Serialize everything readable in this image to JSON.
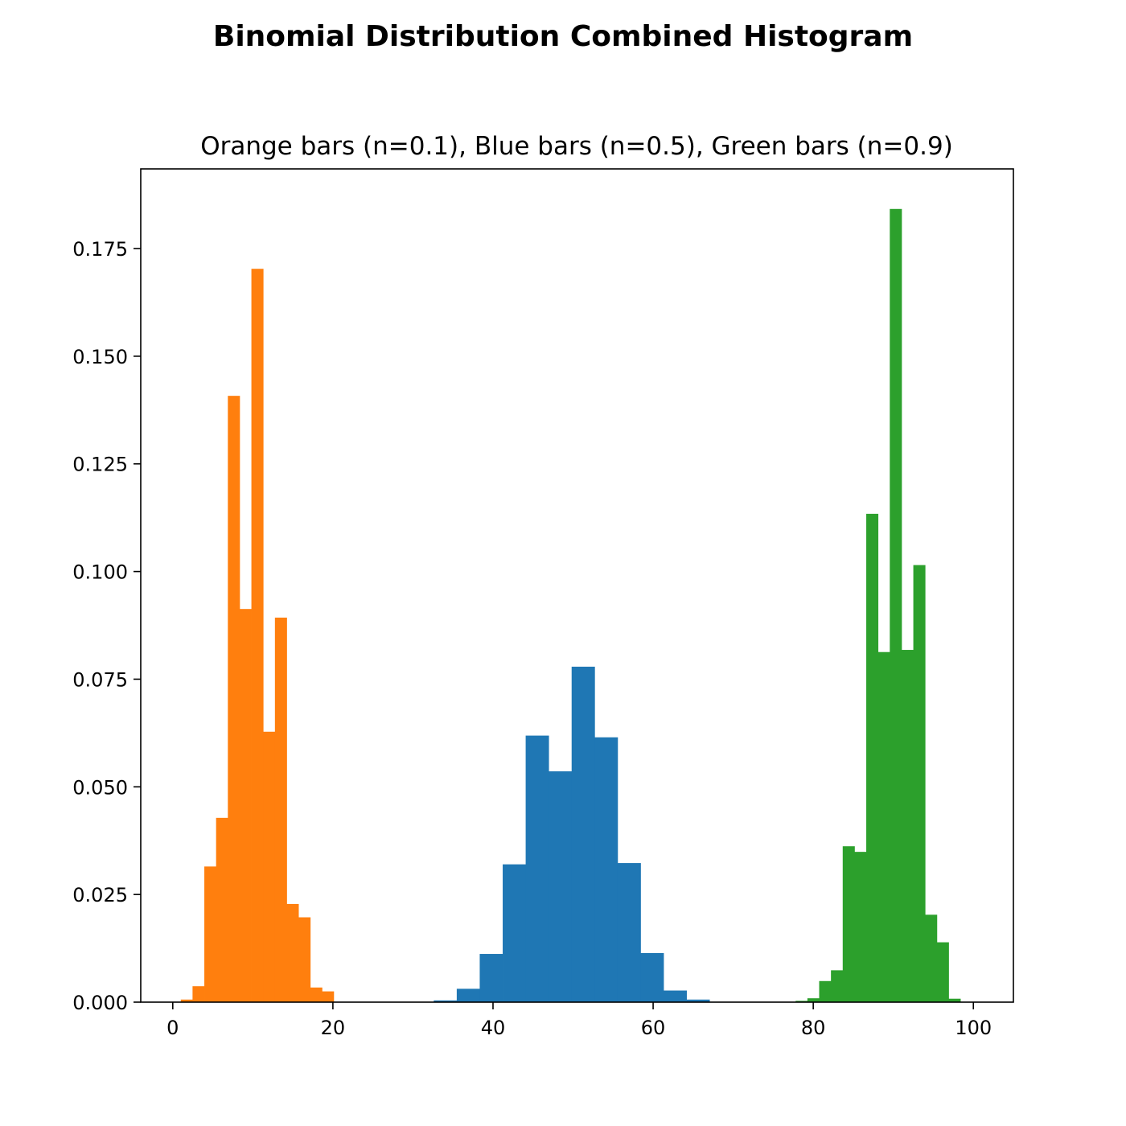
{
  "figure": {
    "suptitle": "Binomial Distribution Combined Histogram",
    "title": "Orange bars (n=0.1), Blue bars (n=0.5), Green bars (n=0.9)"
  },
  "chart_data": {
    "type": "bar",
    "title": "Orange bars (n=0.1), Blue bars (n=0.5), Green bars (n=0.9)",
    "xlabel": "",
    "ylabel": "",
    "xlim": [
      -4,
      105
    ],
    "ylim": [
      0,
      0.1935
    ],
    "x_ticks": [
      0,
      20,
      40,
      60,
      80,
      100
    ],
    "x_tick_labels": [
      "0",
      "20",
      "40",
      "60",
      "80",
      "100"
    ],
    "y_ticks": [
      0,
      0.025,
      0.05,
      0.075,
      0.1,
      0.125,
      0.15,
      0.175
    ],
    "y_tick_labels": [
      "0.000",
      "0.025",
      "0.050",
      "0.075",
      "0.100",
      "0.125",
      "0.150",
      "0.175"
    ],
    "grid": false,
    "legend": "none",
    "series": [
      {
        "color": "#ff7f0e",
        "bin_edges": [
          1.0,
          2.47,
          3.94,
          5.41,
          6.88,
          8.35,
          9.82,
          11.29,
          12.76,
          14.23,
          15.7,
          17.17,
          18.64,
          20.1
        ],
        "values": [
          0.0006,
          0.0037,
          0.0315,
          0.0428,
          0.1408,
          0.0913,
          0.1703,
          0.0628,
          0.0893,
          0.0228,
          0.0197,
          0.0034,
          0.0025
        ]
      },
      {
        "color": "#1f77b4",
        "bin_edges": [
          32.6,
          35.47,
          38.34,
          41.21,
          44.08,
          46.95,
          49.82,
          52.69,
          55.56,
          58.43,
          61.3,
          64.17,
          67.04
        ],
        "values": [
          0.0004,
          0.0031,
          0.0112,
          0.032,
          0.0619,
          0.0536,
          0.0779,
          0.0615,
          0.0323,
          0.0114,
          0.0027,
          0.0006
        ]
      },
      {
        "color": "#2ca02c",
        "bin_edges": [
          77.8,
          79.27,
          80.74,
          82.21,
          83.68,
          85.15,
          86.62,
          88.09,
          89.56,
          91.03,
          92.5,
          93.97,
          95.44,
          96.91,
          98.38
        ],
        "values": [
          0.0003,
          0.0009,
          0.0049,
          0.0074,
          0.0362,
          0.0349,
          0.1134,
          0.0813,
          0.1842,
          0.0818,
          0.1015,
          0.0203,
          0.0139,
          0.0008
        ]
      }
    ]
  }
}
